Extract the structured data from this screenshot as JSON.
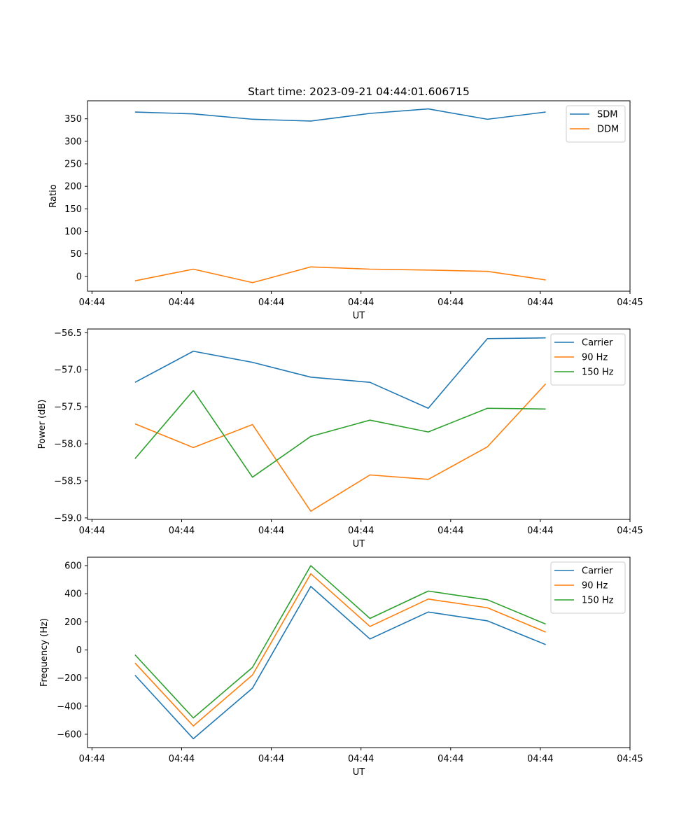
{
  "title": "Start time: 2023-09-21 04:44:01.606715",
  "colors": {
    "blue": "#1f77b4",
    "orange": "#ff7f0e",
    "green": "#2ca02c"
  },
  "chart_data": [
    {
      "type": "line",
      "title": "Start time: 2023-09-21 04:44:01.606715",
      "xlabel": "UT",
      "ylabel": "Ratio",
      "xticks": [
        "04:44",
        "04:44",
        "04:44",
        "04:44",
        "04:44",
        "04:44",
        "04:45"
      ],
      "xtick_positions": [
        0,
        1,
        2,
        3,
        4,
        5,
        6
      ],
      "xlim": [
        -0.05,
        6.0
      ],
      "x": [
        0.48,
        1.13,
        1.79,
        2.44,
        3.1,
        3.75,
        4.41,
        5.06
      ],
      "ylim": [
        -33,
        390
      ],
      "yticks": [
        0,
        50,
        100,
        150,
        200,
        250,
        300,
        350
      ],
      "legend_position": "top-right",
      "series": [
        {
          "name": "SDM",
          "color": "blue",
          "values": [
            365,
            361,
            349,
            345,
            362,
            372,
            349,
            365
          ]
        },
        {
          "name": "DDM",
          "color": "orange",
          "values": [
            -10,
            16,
            -14,
            21,
            16,
            14,
            11,
            -8
          ]
        }
      ]
    },
    {
      "type": "line",
      "xlabel": "UT",
      "ylabel": "Power (dB)",
      "xticks": [
        "04:44",
        "04:44",
        "04:44",
        "04:44",
        "04:44",
        "04:44",
        "04:45"
      ],
      "xtick_positions": [
        0,
        1,
        2,
        3,
        4,
        5,
        6
      ],
      "xlim": [
        -0.05,
        6.0
      ],
      "x": [
        0.48,
        1.13,
        1.79,
        2.44,
        3.1,
        3.75,
        4.41,
        5.06
      ],
      "ylim": [
        -59.02,
        -56.45
      ],
      "yticks": [
        -59.0,
        -58.5,
        -58.0,
        -57.5,
        -57.0,
        -56.5
      ],
      "ytick_labels": [
        "−59.0",
        "−58.5",
        "−58.0",
        "−57.5",
        "−57.0",
        "−56.5"
      ],
      "legend_position": "top-right",
      "series": [
        {
          "name": "Carrier",
          "color": "blue",
          "values": [
            -57.17,
            -56.75,
            -56.9,
            -57.1,
            -57.17,
            -57.52,
            -56.58,
            -56.57
          ]
        },
        {
          "name": "90 Hz",
          "color": "orange",
          "values": [
            -57.73,
            -58.05,
            -57.74,
            -58.91,
            -58.42,
            -58.48,
            -58.04,
            -57.19
          ]
        },
        {
          "name": "150 Hz",
          "color": "green",
          "values": [
            -58.2,
            -57.28,
            -58.45,
            -57.9,
            -57.68,
            -57.84,
            -57.52,
            -57.53
          ]
        }
      ]
    },
    {
      "type": "line",
      "xlabel": "UT",
      "ylabel": "Frequency (Hz)",
      "xticks": [
        "04:44",
        "04:44",
        "04:44",
        "04:44",
        "04:44",
        "04:44",
        "04:45"
      ],
      "xtick_positions": [
        0,
        1,
        2,
        3,
        4,
        5,
        6
      ],
      "xlim": [
        -0.05,
        6.0
      ],
      "x": [
        0.48,
        1.13,
        1.79,
        2.44,
        3.1,
        3.75,
        4.41,
        5.06
      ],
      "ylim": [
        -695,
        660
      ],
      "yticks": [
        -600,
        -400,
        -200,
        0,
        200,
        400,
        600
      ],
      "ytick_labels": [
        "−600",
        "−400",
        "−200",
        "0",
        "200",
        "400",
        "600"
      ],
      "legend_position": "top-right",
      "series": [
        {
          "name": "Carrier",
          "color": "blue",
          "values": [
            -180,
            -632,
            -272,
            452,
            78,
            270,
            207,
            38
          ]
        },
        {
          "name": "90 Hz",
          "color": "orange",
          "values": [
            -93,
            -541,
            -178,
            542,
            167,
            362,
            300,
            127
          ]
        },
        {
          "name": "150 Hz",
          "color": "green",
          "values": [
            -35,
            -484,
            -124,
            600,
            224,
            419,
            357,
            184
          ]
        }
      ]
    }
  ]
}
